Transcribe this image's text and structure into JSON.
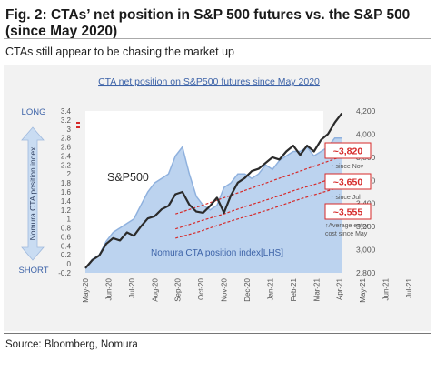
{
  "figure": {
    "title": "Fig. 2: CTAs’ net position in S&P 500 futures vs. the S&P 500 (since May 2020)",
    "subtitle": "CTAs still appear to be chasing the market up",
    "source": "Source: Bloomberg, Nomura"
  },
  "chart_data": {
    "type": "line",
    "title": "CTA net position on S&P500 futures since May 2020",
    "left_axis": {
      "label": "Nomura CTA position index",
      "top_label": "LONG",
      "bottom_label": "SHORT",
      "ticks": [
        "3.4",
        "3.2",
        "3",
        "2.8",
        "2.6",
        "2.4",
        "2.2",
        "2",
        "1.8",
        "1.6",
        "1.4",
        "1.2",
        "1",
        "0.8",
        "0.6",
        "0.4",
        "0.2",
        "0",
        "-0.2"
      ],
      "ylim": [
        -0.2,
        3.4
      ]
    },
    "right_axis": {
      "ticks": [
        "4,200",
        "4,000",
        "3,800",
        "3,600",
        "3,400",
        "3,200",
        "3,000",
        "2,800"
      ],
      "ylim": [
        2800,
        4200
      ]
    },
    "x_ticks": [
      "May-20",
      "Jun-20",
      "Jul-20",
      "Aug-20",
      "Sep-20",
      "Oct-20",
      "Nov-20",
      "Dec-20",
      "Jan-21",
      "Feb-21",
      "Mar-21",
      "Apr-21",
      "May-21",
      "Jun-21",
      "Jul-21"
    ],
    "x_range_months": [
      0,
      14
    ],
    "series": [
      {
        "name": "Nomura CTA position index[LHS]",
        "axis": "left",
        "style": "area",
        "color": "#a9c4e8",
        "points": [
          [
            0.0,
            -0.1
          ],
          [
            0.3,
            0.1
          ],
          [
            0.6,
            0.2
          ],
          [
            0.9,
            0.5
          ],
          [
            1.2,
            0.7
          ],
          [
            1.5,
            0.8
          ],
          [
            1.8,
            0.9
          ],
          [
            2.1,
            1.0
          ],
          [
            2.4,
            1.3
          ],
          [
            2.7,
            1.6
          ],
          [
            3.0,
            1.8
          ],
          [
            3.3,
            1.9
          ],
          [
            3.6,
            2.0
          ],
          [
            3.9,
            2.4
          ],
          [
            4.2,
            2.6
          ],
          [
            4.5,
            2.0
          ],
          [
            4.8,
            1.5
          ],
          [
            5.1,
            1.3
          ],
          [
            5.4,
            1.2
          ],
          [
            5.7,
            1.3
          ],
          [
            6.0,
            1.7
          ],
          [
            6.3,
            1.8
          ],
          [
            6.6,
            2.0
          ],
          [
            6.9,
            2.0
          ],
          [
            7.2,
            1.9
          ],
          [
            7.5,
            2.0
          ],
          [
            7.8,
            2.2
          ],
          [
            8.1,
            2.1
          ],
          [
            8.4,
            2.3
          ],
          [
            8.7,
            2.4
          ],
          [
            9.0,
            2.5
          ],
          [
            9.3,
            2.5
          ],
          [
            9.6,
            2.6
          ],
          [
            9.9,
            2.4
          ],
          [
            10.2,
            2.5
          ],
          [
            10.5,
            2.6
          ],
          [
            10.8,
            2.8
          ],
          [
            11.1,
            2.8
          ]
        ]
      },
      {
        "name": "S&P500",
        "axis": "right",
        "style": "line",
        "color": "#2b2b2b",
        "points": [
          [
            0.0,
            2840
          ],
          [
            0.3,
            2910
          ],
          [
            0.6,
            2950
          ],
          [
            0.9,
            3050
          ],
          [
            1.2,
            3100
          ],
          [
            1.5,
            3080
          ],
          [
            1.8,
            3150
          ],
          [
            2.1,
            3120
          ],
          [
            2.4,
            3200
          ],
          [
            2.7,
            3270
          ],
          [
            3.0,
            3290
          ],
          [
            3.3,
            3350
          ],
          [
            3.6,
            3380
          ],
          [
            3.9,
            3480
          ],
          [
            4.2,
            3500
          ],
          [
            4.5,
            3390
          ],
          [
            4.8,
            3330
          ],
          [
            5.1,
            3320
          ],
          [
            5.4,
            3380
          ],
          [
            5.7,
            3450
          ],
          [
            6.0,
            3320
          ],
          [
            6.3,
            3470
          ],
          [
            6.6,
            3580
          ],
          [
            6.9,
            3620
          ],
          [
            7.2,
            3680
          ],
          [
            7.5,
            3700
          ],
          [
            7.8,
            3750
          ],
          [
            8.1,
            3800
          ],
          [
            8.4,
            3780
          ],
          [
            8.7,
            3850
          ],
          [
            9.0,
            3900
          ],
          [
            9.3,
            3820
          ],
          [
            9.6,
            3900
          ],
          [
            9.9,
            3850
          ],
          [
            10.2,
            3950
          ],
          [
            10.5,
            4000
          ],
          [
            10.8,
            4100
          ],
          [
            11.1,
            4180
          ]
        ]
      },
      {
        "name": "~3,820",
        "axis": "right",
        "style": "dashed",
        "color": "#d62a2a",
        "points": [
          [
            3.9,
            3310
          ],
          [
            5.0,
            3380
          ],
          [
            6.0,
            3450
          ],
          [
            7.0,
            3520
          ],
          [
            8.0,
            3590
          ],
          [
            9.0,
            3660
          ],
          [
            10.0,
            3730
          ],
          [
            11.0,
            3800
          ],
          [
            11.2,
            3820
          ]
        ]
      },
      {
        "name": "~3,650",
        "axis": "right",
        "style": "dashed",
        "color": "#d62a2a",
        "points": [
          [
            3.9,
            3180
          ],
          [
            5.0,
            3250
          ],
          [
            6.0,
            3310
          ],
          [
            7.0,
            3380
          ],
          [
            8.0,
            3440
          ],
          [
            9.0,
            3510
          ],
          [
            10.0,
            3570
          ],
          [
            11.0,
            3640
          ],
          [
            11.2,
            3650
          ]
        ]
      },
      {
        "name": "~3,555",
        "axis": "right",
        "style": "dashed",
        "color": "#d62a2a",
        "points": [
          [
            3.9,
            3100
          ],
          [
            5.0,
            3160
          ],
          [
            6.0,
            3230
          ],
          [
            7.0,
            3290
          ],
          [
            8.0,
            3350
          ],
          [
            9.0,
            3420
          ],
          [
            10.0,
            3480
          ],
          [
            11.0,
            3540
          ],
          [
            11.2,
            3555
          ]
        ]
      }
    ],
    "annotations": [
      {
        "label": "~3,820",
        "note": "↑ since Nov"
      },
      {
        "label": "~3,650",
        "note": "↑ since Jul"
      },
      {
        "label": "~3,555",
        "note": "↑Average entry cost since May"
      }
    ],
    "series_labels": {
      "sp500": "S&P500",
      "cta": "Nomura CTA position index[LHS]"
    },
    "colors": {
      "plot_bg": "#ffffff",
      "panel_bg": "#f2f2f2",
      "area_fill": "#bcd3ef",
      "area_edge": "#8fb1de",
      "sp500_line": "#2b2b2b",
      "threshold": "#d62a2a",
      "blue_text": "#3d63a8",
      "arrow_fill": "#c9dcf2"
    }
  }
}
